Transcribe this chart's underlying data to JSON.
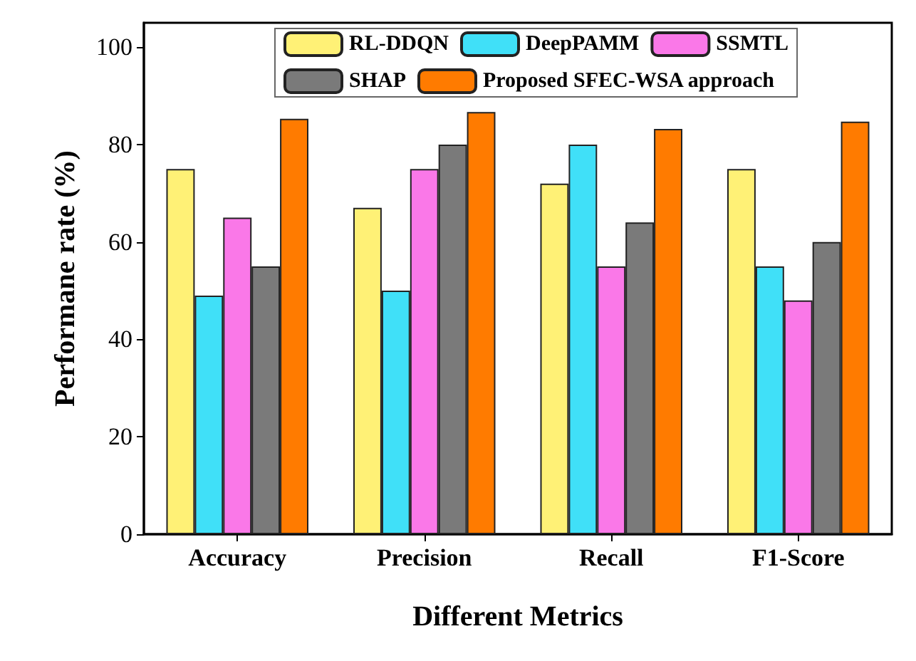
{
  "chart_data": {
    "type": "bar",
    "xlabel": "Different Metrics",
    "ylabel": "Performane rate (%)",
    "categories": [
      "Accuracy",
      "Precision",
      "Recall",
      "F1-Score"
    ],
    "series": [
      {
        "name": "RL-DDQN",
        "color": "#fff176",
        "values": [
          75,
          67,
          72,
          75
        ]
      },
      {
        "name": "DeepPAMM",
        "color": "#40e0f8",
        "values": [
          49,
          50,
          80,
          55
        ]
      },
      {
        "name": "SSMTL",
        "color": "#fa78e8",
        "values": [
          65,
          75,
          55,
          48
        ]
      },
      {
        "name": "SHAP",
        "color": "#7a7a7a",
        "values": [
          55,
          80,
          64,
          60
        ]
      },
      {
        "name": "Proposed SFEC-WSA approach",
        "color": "#ff7b00",
        "values": [
          85.3,
          86.7,
          83.2,
          84.7
        ]
      }
    ],
    "ylim": [
      0,
      105
    ],
    "yticks": [
      0,
      20,
      40,
      60,
      80,
      100
    ],
    "grid": false,
    "legend": "top"
  }
}
